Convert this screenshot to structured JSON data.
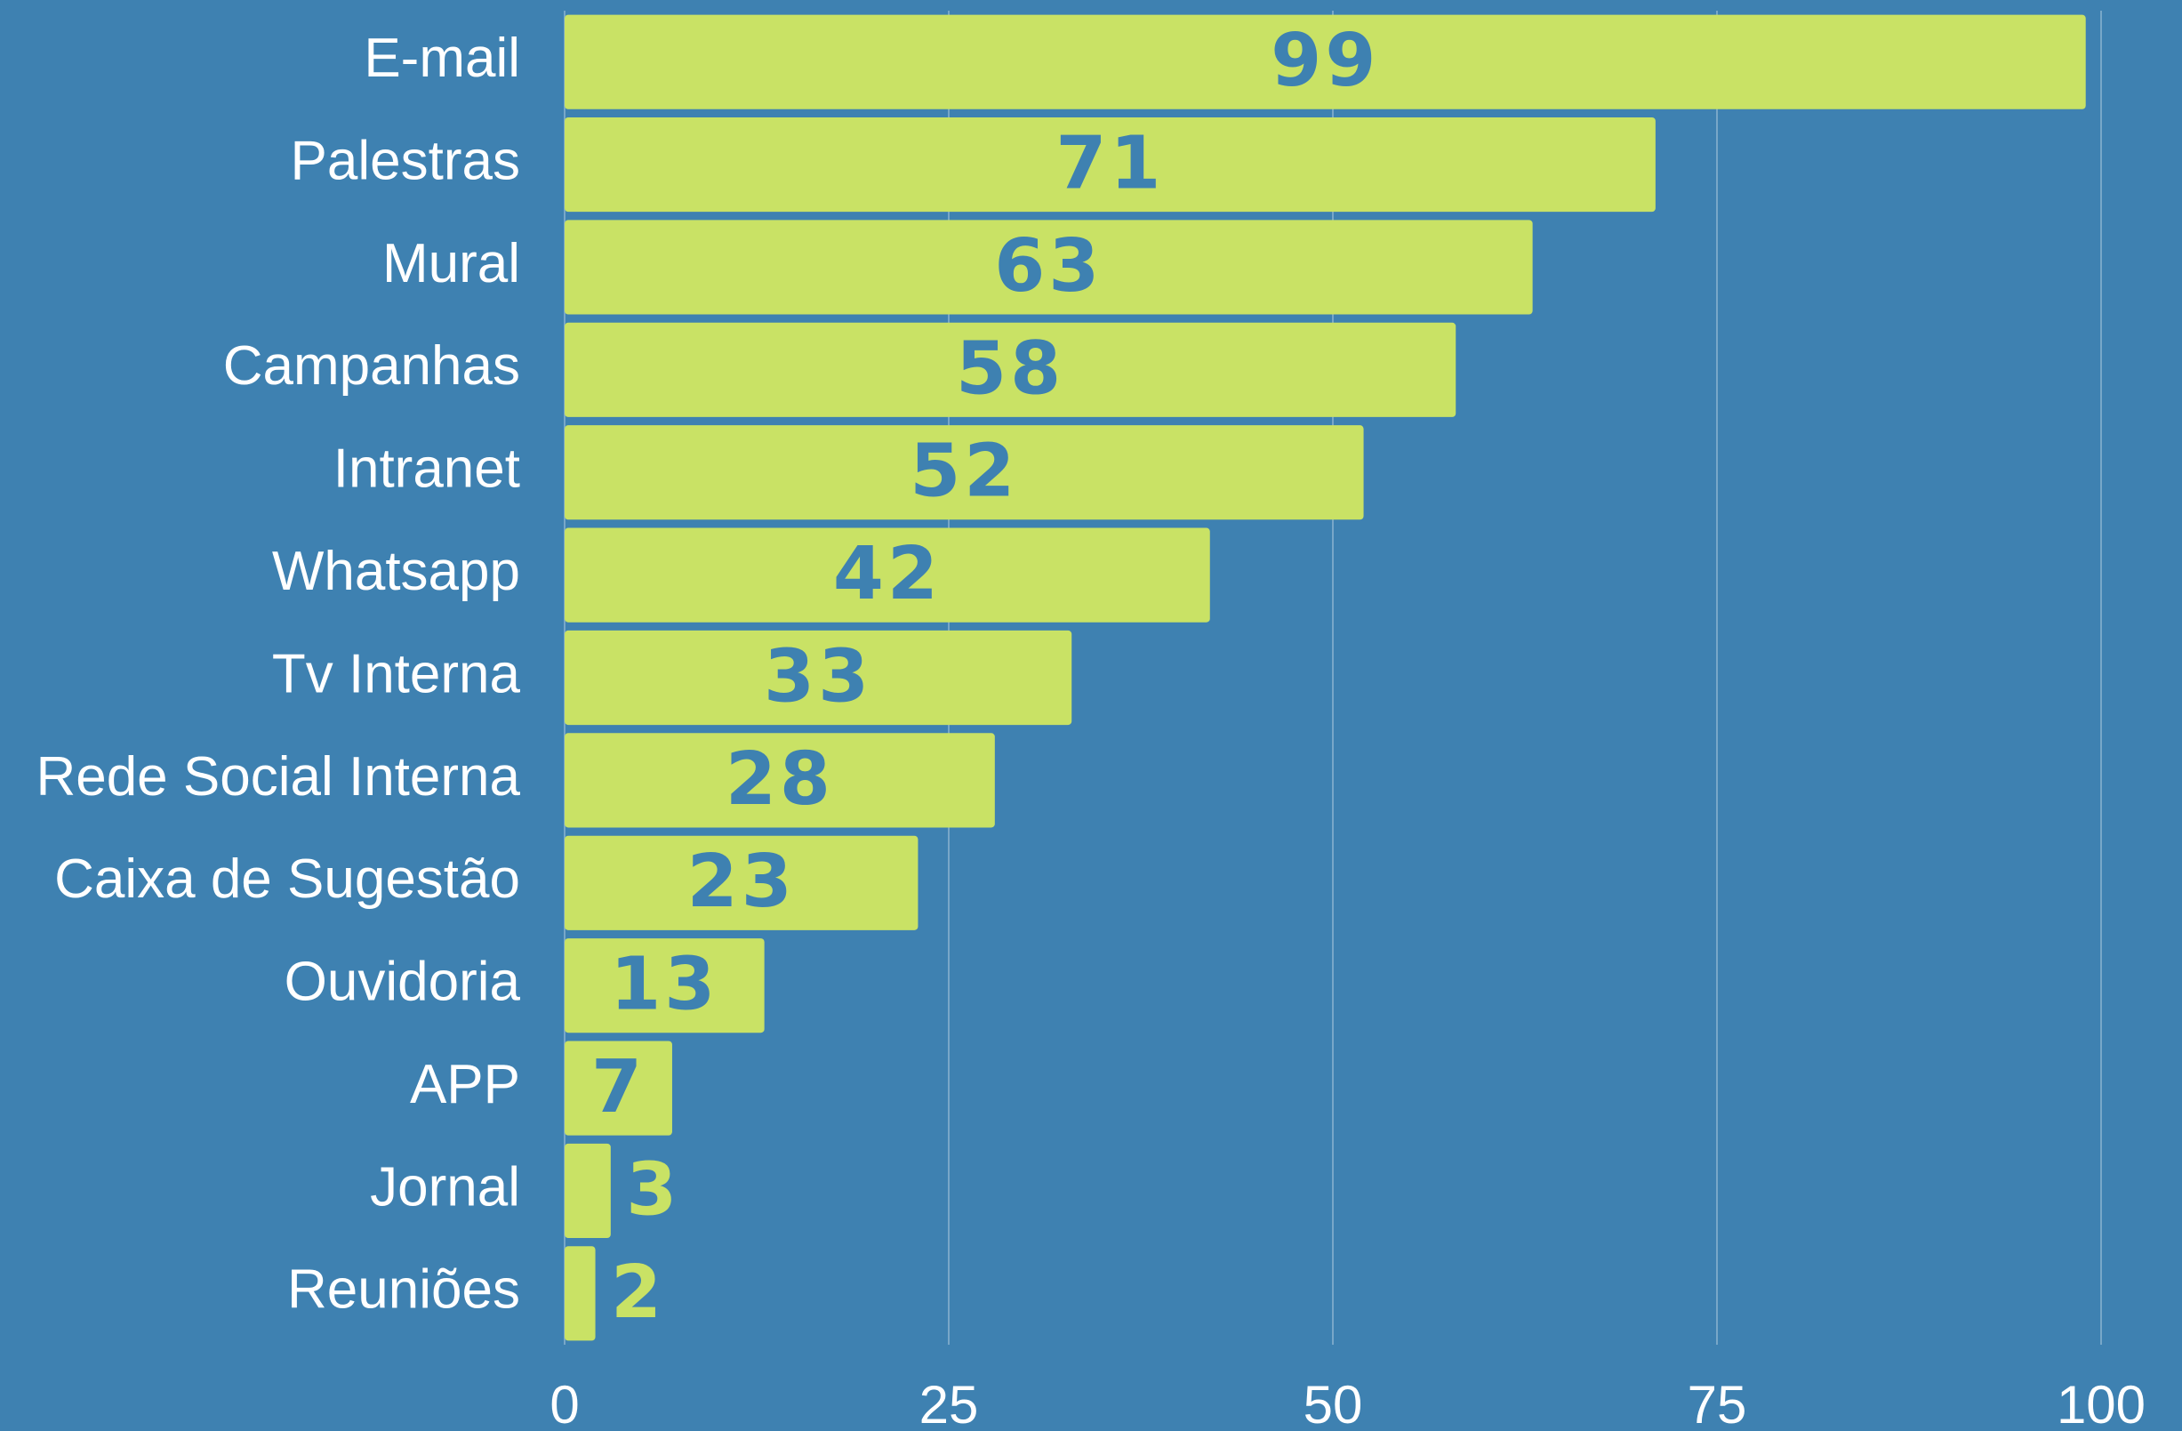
{
  "chart_data": {
    "type": "bar",
    "orientation": "horizontal",
    "categories": [
      "E-mail",
      "Palestras",
      "Mural",
      "Campanhas",
      "Intranet",
      "Whatsapp",
      "Tv Interna",
      "Rede Social Interna",
      "Caixa de Sugestão",
      "Ouvidoria",
      "APP",
      "Jornal",
      "Reuniões"
    ],
    "values": [
      99,
      71,
      63,
      58,
      52,
      42,
      33,
      28,
      23,
      13,
      7,
      3,
      2
    ],
    "color": "#c9e265",
    "background": "#3e81b1",
    "label_color": "#3e81b1",
    "xlim": [
      0,
      100
    ],
    "xticks": [
      0,
      25,
      50,
      75,
      100
    ],
    "grid": true
  }
}
